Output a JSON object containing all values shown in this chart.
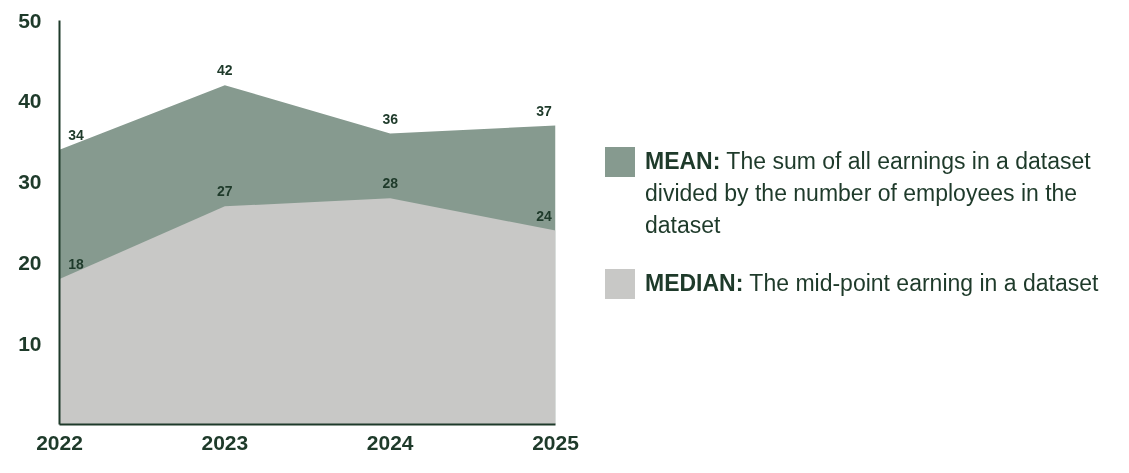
{
  "chart_data": {
    "type": "area",
    "categories": [
      "2022",
      "2023",
      "2024",
      "2025"
    ],
    "series": [
      {
        "name": "MEAN: The sum of all earnings in a dataset divided by the number of employees in the dataset",
        "color": "#869a8f",
        "values": [
          34,
          42,
          36,
          37
        ]
      },
      {
        "name": "MEDIAN: The mid-point earning in a dataset",
        "color": "#c8c8c6",
        "values": [
          18,
          27,
          28,
          24
        ]
      }
    ],
    "ylim": [
      0,
      50
    ],
    "yticks": [
      10,
      20,
      30,
      40,
      50
    ],
    "data_labels": true,
    "grid": false,
    "legend": "right"
  }
}
